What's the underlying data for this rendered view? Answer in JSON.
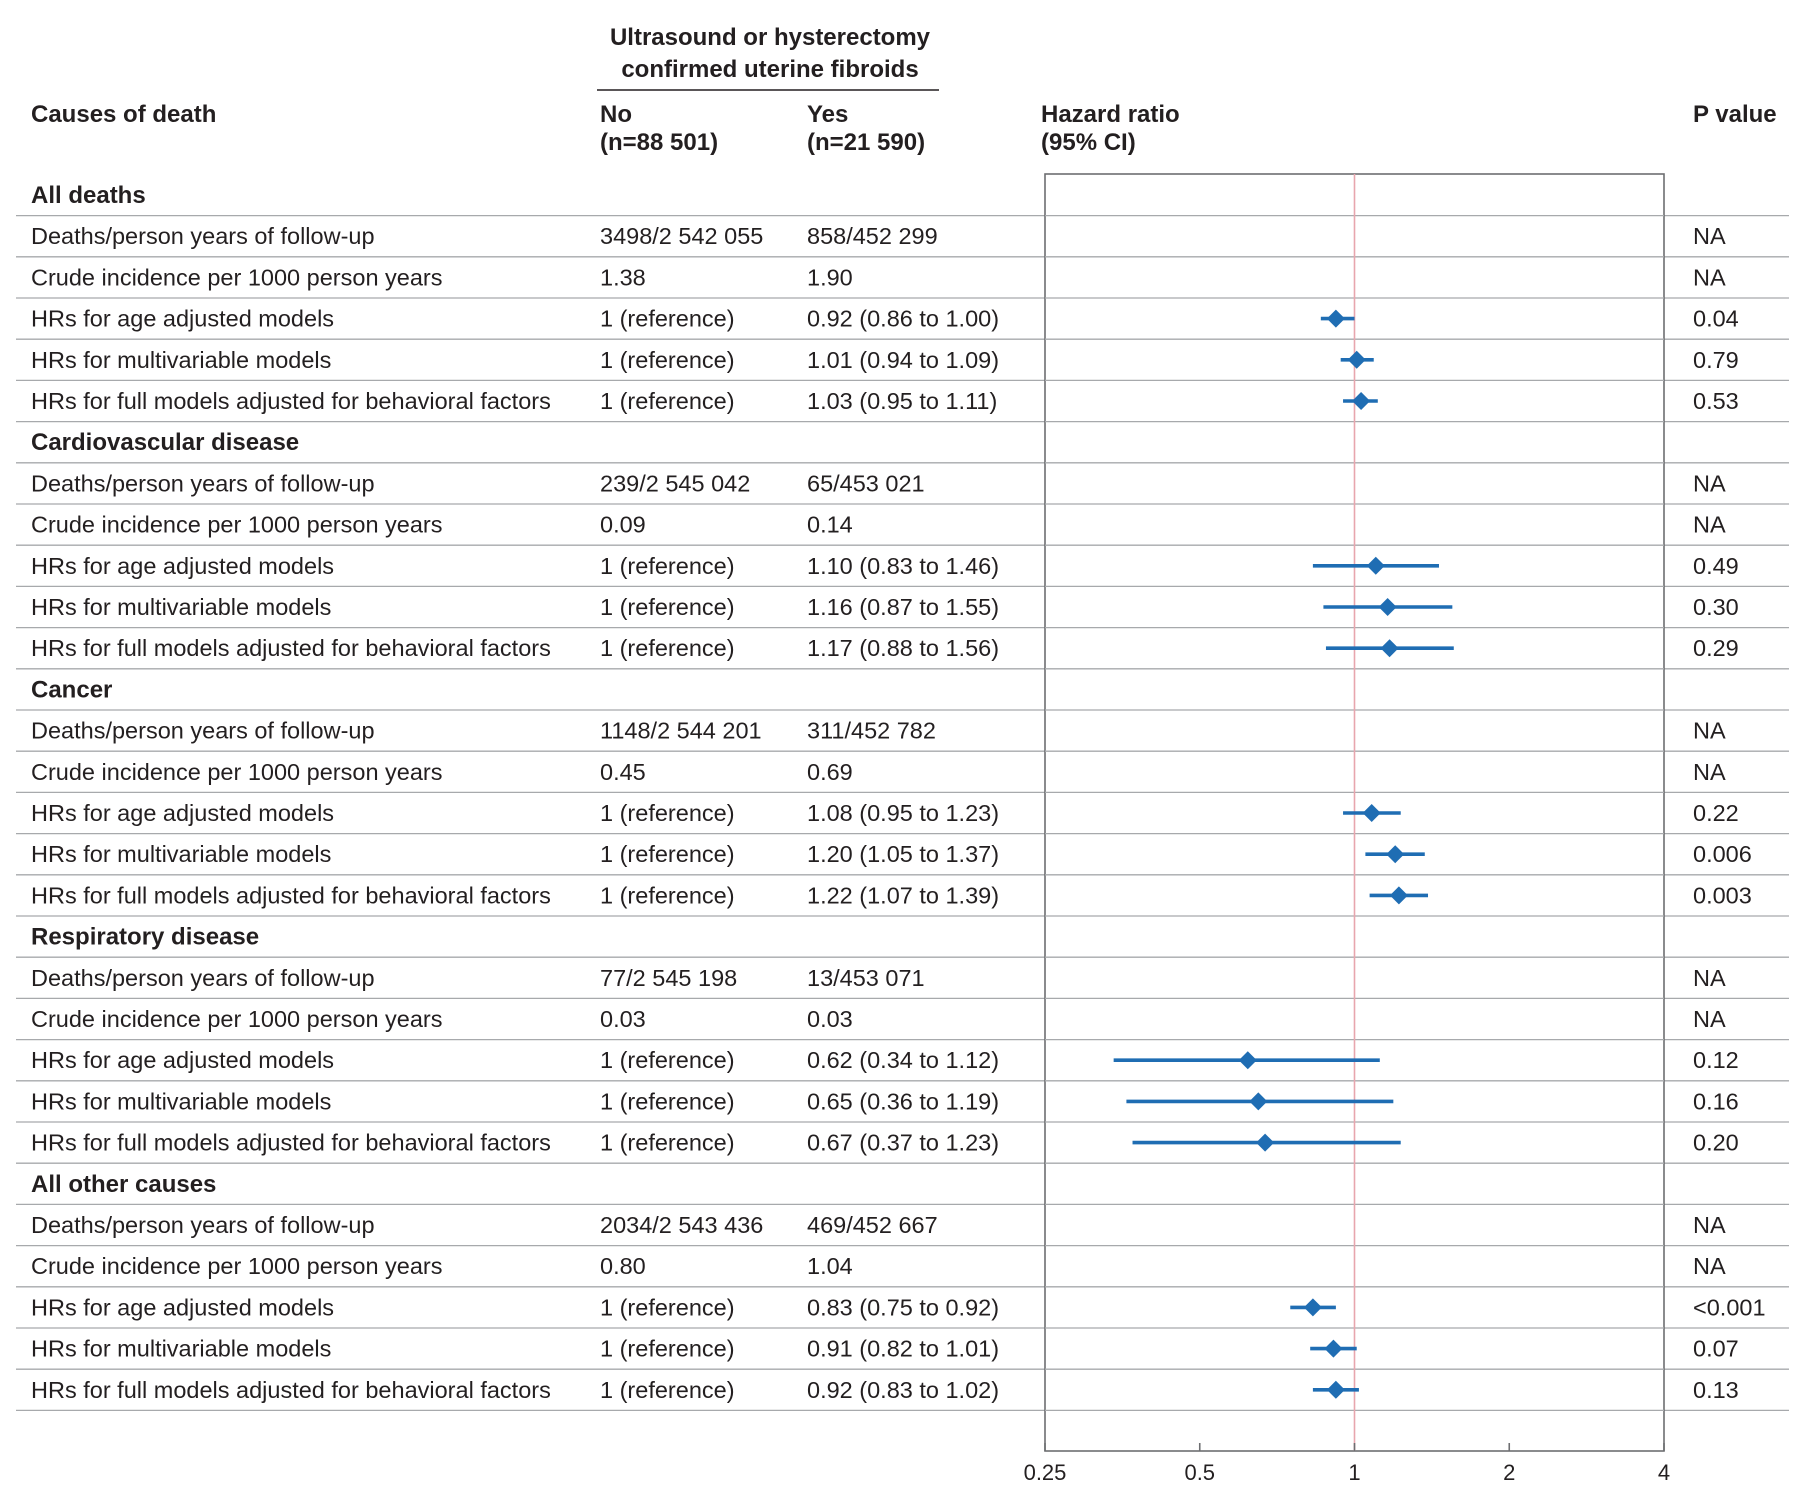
{
  "header": {
    "group_line1": "Ultrasound or hysterectomy",
    "group_line2": "confirmed uterine fibroids",
    "causes": "Causes of death",
    "no_label": "No",
    "no_n": "(n=88 501)",
    "yes_label": "Yes",
    "yes_n": "(n=21 590)",
    "hr_label": "Hazard ratio",
    "hr_ci": "(95% CI)",
    "p_label": "P value"
  },
  "colors": {
    "marker": "#1f6db3",
    "reference_line": "#e8a6ae",
    "grid": "#a7a9ac",
    "text": "#231f20"
  },
  "chart_data": {
    "type": "forest",
    "x_scale": "log2",
    "xlim": [
      0.25,
      4
    ],
    "ticks": [
      "0.25",
      "0.5",
      "1",
      "2",
      "4"
    ],
    "tick_values": [
      0.25,
      0.5,
      1,
      2,
      4
    ],
    "reference": 1,
    "sections": [
      {
        "title": "All deaths",
        "rows": [
          {
            "label": "Deaths/person years of follow-up",
            "no": "3498/2 542 055",
            "yes": "858/452 299",
            "p": "NA"
          },
          {
            "label": "Crude incidence per 1000 person years",
            "no": "1.38",
            "yes": "1.90",
            "p": "NA"
          },
          {
            "label": "HRs for age adjusted models",
            "no": "1 (reference)",
            "yes": "0.92 (0.86 to 1.00)",
            "p": "0.04",
            "hr": 0.92,
            "lo": 0.86,
            "hi": 1.0
          },
          {
            "label": "HRs for multivariable models",
            "no": "1 (reference)",
            "yes": "1.01 (0.94 to 1.09)",
            "p": "0.79",
            "hr": 1.01,
            "lo": 0.94,
            "hi": 1.09
          },
          {
            "label": "HRs for full models adjusted for behavioral factors",
            "no": "1 (reference)",
            "yes": "1.03 (0.95 to 1.11)",
            "p": "0.53",
            "hr": 1.03,
            "lo": 0.95,
            "hi": 1.11
          }
        ]
      },
      {
        "title": "Cardiovascular disease",
        "rows": [
          {
            "label": "Deaths/person years of follow-up",
            "no": "239/2 545 042",
            "yes": "65/453 021",
            "p": "NA"
          },
          {
            "label": "Crude incidence per 1000 person years",
            "no": "0.09",
            "yes": "0.14",
            "p": "NA"
          },
          {
            "label": "HRs for age adjusted models",
            "no": "1 (reference)",
            "yes": "1.10 (0.83 to 1.46)",
            "p": "0.49",
            "hr": 1.1,
            "lo": 0.83,
            "hi": 1.46
          },
          {
            "label": "HRs for multivariable models",
            "no": "1 (reference)",
            "yes": "1.16 (0.87 to 1.55)",
            "p": "0.30",
            "hr": 1.16,
            "lo": 0.87,
            "hi": 1.55
          },
          {
            "label": "HRs for full models adjusted for behavioral factors",
            "no": "1 (reference)",
            "yes": "1.17 (0.88 to 1.56)",
            "p": "0.29",
            "hr": 1.17,
            "lo": 0.88,
            "hi": 1.56
          }
        ]
      },
      {
        "title": "Cancer",
        "rows": [
          {
            "label": "Deaths/person years of follow-up",
            "no": "1148/2 544 201",
            "yes": "311/452 782",
            "p": "NA"
          },
          {
            "label": "Crude incidence per 1000 person years",
            "no": "0.45",
            "yes": "0.69",
            "p": "NA"
          },
          {
            "label": "HRs for age adjusted models",
            "no": "1 (reference)",
            "yes": "1.08 (0.95 to 1.23)",
            "p": "0.22",
            "hr": 1.08,
            "lo": 0.95,
            "hi": 1.23
          },
          {
            "label": "HRs for multivariable models",
            "no": "1 (reference)",
            "yes": "1.20 (1.05 to 1.37)",
            "p": "0.006",
            "hr": 1.2,
            "lo": 1.05,
            "hi": 1.37
          },
          {
            "label": "HRs for full models adjusted for behavioral factors",
            "no": "1 (reference)",
            "yes": "1.22 (1.07 to 1.39)",
            "p": "0.003",
            "hr": 1.22,
            "lo": 1.07,
            "hi": 1.39
          }
        ]
      },
      {
        "title": "Respiratory disease",
        "rows": [
          {
            "label": "Deaths/person years of follow-up",
            "no": "77/2 545 198",
            "yes": "13/453 071",
            "p": "NA"
          },
          {
            "label": "Crude incidence per 1000 person years",
            "no": "0.03",
            "yes": "0.03",
            "p": "NA"
          },
          {
            "label": "HRs for age adjusted models",
            "no": "1 (reference)",
            "yes": "0.62 (0.34 to 1.12)",
            "p": "0.12",
            "hr": 0.62,
            "lo": 0.34,
            "hi": 1.12
          },
          {
            "label": "HRs for multivariable models",
            "no": "1 (reference)",
            "yes": "0.65 (0.36 to 1.19)",
            "p": "0.16",
            "hr": 0.65,
            "lo": 0.36,
            "hi": 1.19
          },
          {
            "label": "HRs for full models adjusted for behavioral factors",
            "no": "1 (reference)",
            "yes": "0.67 (0.37 to 1.23)",
            "p": "0.20",
            "hr": 0.67,
            "lo": 0.37,
            "hi": 1.23
          }
        ]
      },
      {
        "title": "All other causes",
        "rows": [
          {
            "label": "Deaths/person years of follow-up",
            "no": "2034/2 543 436",
            "yes": "469/452 667",
            "p": "NA"
          },
          {
            "label": "Crude incidence per 1000 person years",
            "no": "0.80",
            "yes": "1.04",
            "p": "NA"
          },
          {
            "label": "HRs for age adjusted models",
            "no": "1 (reference)",
            "yes": "0.83 (0.75 to 0.92)",
            "p": "<0.001",
            "hr": 0.83,
            "lo": 0.75,
            "hi": 0.92
          },
          {
            "label": "HRs for multivariable models",
            "no": "1 (reference)",
            "yes": "0.91 (0.82 to 1.01)",
            "p": "0.07",
            "hr": 0.91,
            "lo": 0.82,
            "hi": 1.01
          },
          {
            "label": "HRs for full models adjusted for behavioral factors",
            "no": "1 (reference)",
            "yes": "0.92 (0.83 to 1.02)",
            "p": "0.13",
            "hr": 0.92,
            "lo": 0.83,
            "hi": 1.02
          }
        ]
      }
    ]
  }
}
